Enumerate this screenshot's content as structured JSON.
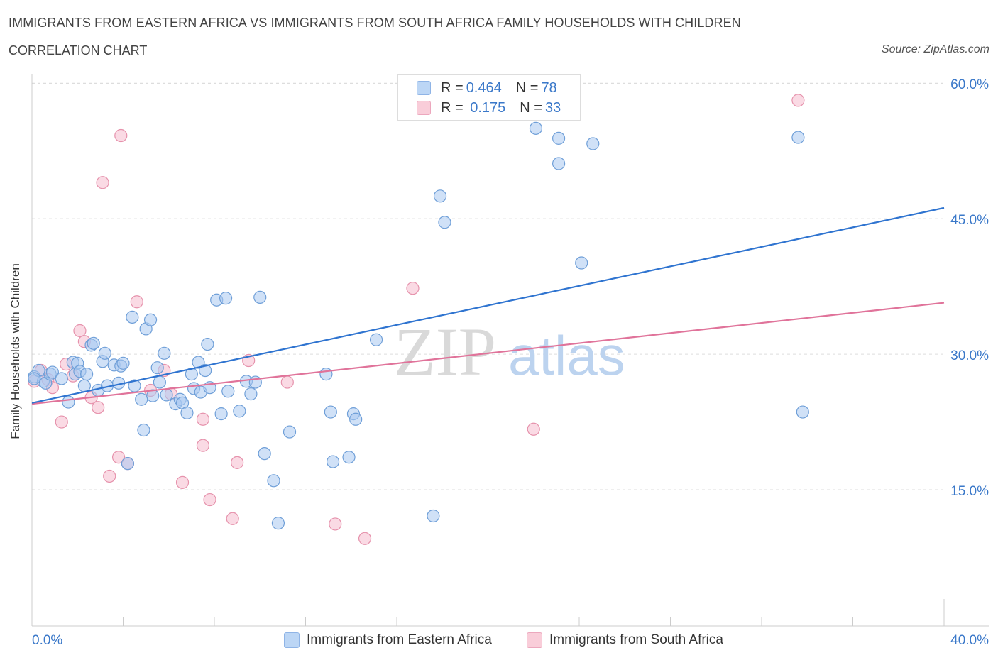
{
  "title": "IMMIGRANTS FROM EASTERN AFRICA VS IMMIGRANTS FROM SOUTH AFRICA FAMILY HOUSEHOLDS WITH CHILDREN",
  "subtitle": "CORRELATION CHART",
  "source": "Source: ZipAtlas.com",
  "watermark": {
    "zip": "ZIP",
    "atlas": "atlas"
  },
  "legend_top": {
    "rows": [
      {
        "r_label": "R = ",
        "r_value": "0.464",
        "n_label": "N = ",
        "n_value": "78"
      },
      {
        "r_label": "R = ",
        "r_value": " 0.175",
        "n_label": "N = ",
        "n_value": "33"
      }
    ]
  },
  "legend_bottom": {
    "items": [
      {
        "label": "Immigrants from Eastern Africa"
      },
      {
        "label": "Immigrants from South Africa"
      }
    ]
  },
  "colors": {
    "blue_fill": "#a9c8f0",
    "blue_stroke": "#6f9fd8",
    "blue_line": "#2f74d0",
    "pink_fill": "#f6bccd",
    "pink_stroke": "#e692ac",
    "pink_line": "#e0739a",
    "axis_text": "#3a78c9",
    "grid": "#dddddd"
  },
  "chart_data": {
    "type": "scatter",
    "xlabel": "",
    "ylabel": "Family Households with Children",
    "xlim": [
      0,
      40
    ],
    "ylim": [
      0,
      60
    ],
    "x_tick_labels": [
      "0.0%",
      "40.0%"
    ],
    "y_tick_labels": [
      "15.0%",
      "30.0%",
      "45.0%",
      "60.0%"
    ],
    "y_ticks": [
      15,
      30,
      45,
      60
    ],
    "grid": true,
    "legend_placement": "bottom",
    "series": [
      {
        "name": "Immigrants from Eastern Africa",
        "color": "blue",
        "trend": {
          "x0": 0,
          "y0": 24.6,
          "x1": 40,
          "y1": 46.2
        },
        "points": [
          [
            0.1,
            27.5
          ],
          [
            0.3,
            28.2
          ],
          [
            0.5,
            27.0
          ],
          [
            0.6,
            26.8
          ],
          [
            0.8,
            27.8
          ],
          [
            0.9,
            28.0
          ],
          [
            1.3,
            27.3
          ],
          [
            1.6,
            24.7
          ],
          [
            1.8,
            29.1
          ],
          [
            1.9,
            27.8
          ],
          [
            2.0,
            29.0
          ],
          [
            2.1,
            28.1
          ],
          [
            2.3,
            26.5
          ],
          [
            2.4,
            27.8
          ],
          [
            2.6,
            31.0
          ],
          [
            2.7,
            31.2
          ],
          [
            2.9,
            26.0
          ],
          [
            3.1,
            29.2
          ],
          [
            3.2,
            30.1
          ],
          [
            3.3,
            26.5
          ],
          [
            3.6,
            28.8
          ],
          [
            3.8,
            26.8
          ],
          [
            3.9,
            28.7
          ],
          [
            4.0,
            29.0
          ],
          [
            4.2,
            17.9
          ],
          [
            4.4,
            34.1
          ],
          [
            4.5,
            26.5
          ],
          [
            4.8,
            25.0
          ],
          [
            4.9,
            21.6
          ],
          [
            5.0,
            32.8
          ],
          [
            5.2,
            33.8
          ],
          [
            5.3,
            25.4
          ],
          [
            5.5,
            28.5
          ],
          [
            5.6,
            26.9
          ],
          [
            5.8,
            30.1
          ],
          [
            5.9,
            25.5
          ],
          [
            6.3,
            24.5
          ],
          [
            6.5,
            25.0
          ],
          [
            6.6,
            24.6
          ],
          [
            6.8,
            23.5
          ],
          [
            7.0,
            27.8
          ],
          [
            7.1,
            26.2
          ],
          [
            7.3,
            29.1
          ],
          [
            7.4,
            25.8
          ],
          [
            7.6,
            28.2
          ],
          [
            7.7,
            31.1
          ],
          [
            7.8,
            26.3
          ],
          [
            8.1,
            36.0
          ],
          [
            8.3,
            23.4
          ],
          [
            8.5,
            36.2
          ],
          [
            8.6,
            25.9
          ],
          [
            9.1,
            23.7
          ],
          [
            9.4,
            27.0
          ],
          [
            9.6,
            25.6
          ],
          [
            9.8,
            26.9
          ],
          [
            10.0,
            36.3
          ],
          [
            10.2,
            19.0
          ],
          [
            10.6,
            16.0
          ],
          [
            10.8,
            11.3
          ],
          [
            11.3,
            21.4
          ],
          [
            12.9,
            27.8
          ],
          [
            13.1,
            23.6
          ],
          [
            13.2,
            18.1
          ],
          [
            13.9,
            18.6
          ],
          [
            14.1,
            23.4
          ],
          [
            14.2,
            22.8
          ],
          [
            15.1,
            31.6
          ],
          [
            17.6,
            12.1
          ],
          [
            17.9,
            47.5
          ],
          [
            18.1,
            44.6
          ],
          [
            22.1,
            55.0
          ],
          [
            23.1,
            53.9
          ],
          [
            23.1,
            51.1
          ],
          [
            24.1,
            40.1
          ],
          [
            24.6,
            53.3
          ],
          [
            33.6,
            54.0
          ],
          [
            33.8,
            23.6
          ],
          [
            0.1,
            27.3
          ]
        ]
      },
      {
        "name": "Immigrants from South Africa",
        "color": "pink",
        "trend": {
          "x0": 0,
          "y0": 24.5,
          "x1": 40,
          "y1": 35.7
        },
        "points": [
          [
            0.1,
            27.0
          ],
          [
            0.4,
            28.2
          ],
          [
            0.7,
            27.2
          ],
          [
            0.9,
            26.3
          ],
          [
            1.3,
            22.5
          ],
          [
            1.5,
            28.9
          ],
          [
            1.8,
            27.6
          ],
          [
            2.1,
            32.6
          ],
          [
            2.3,
            31.4
          ],
          [
            2.6,
            25.2
          ],
          [
            2.9,
            24.1
          ],
          [
            3.1,
            49.0
          ],
          [
            3.4,
            16.5
          ],
          [
            3.8,
            18.6
          ],
          [
            3.9,
            54.2
          ],
          [
            4.2,
            17.9
          ],
          [
            4.6,
            35.8
          ],
          [
            5.2,
            26.0
          ],
          [
            5.8,
            28.2
          ],
          [
            6.1,
            25.6
          ],
          [
            6.6,
            15.8
          ],
          [
            7.5,
            22.8
          ],
          [
            7.5,
            19.9
          ],
          [
            7.8,
            13.9
          ],
          [
            8.8,
            11.8
          ],
          [
            9.0,
            18.0
          ],
          [
            9.5,
            29.3
          ],
          [
            11.2,
            26.9
          ],
          [
            13.3,
            11.2
          ],
          [
            14.6,
            9.6
          ],
          [
            16.7,
            37.3
          ],
          [
            22.0,
            21.7
          ],
          [
            33.6,
            58.1
          ]
        ]
      }
    ]
  }
}
